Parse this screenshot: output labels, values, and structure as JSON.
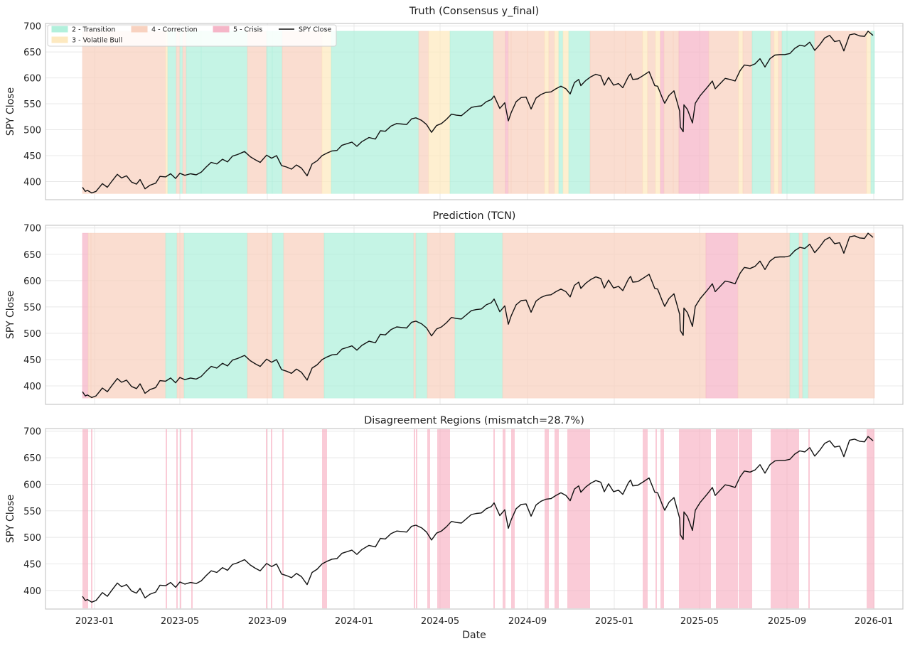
{
  "figure": {
    "xlabel": "Date"
  },
  "colors": {
    "regime_2": "#b2f0dc",
    "regime_3": "#fde9c0",
    "regime_4": "#f8d2c0",
    "regime_5": "#f5b6c8",
    "mismatch": "#f7a8bd",
    "line": "#111111",
    "grid": "#e8e8e8",
    "frame": "#c8c8c8"
  },
  "chart_data": [
    {
      "type": "line",
      "title": "Truth (Consensus y_final)",
      "ylabel": "SPY Close",
      "ylim": [
        365,
        705
      ],
      "xlim": [
        "2022-10-24",
        "2026-02-11"
      ],
      "yticks": [
        400,
        450,
        500,
        550,
        600,
        650,
        700
      ],
      "grid": true,
      "legend_position": "top-left",
      "legend": [
        {
          "label": "2 - Transition",
          "kind": "patch",
          "regime": 2
        },
        {
          "label": "3 - Volatile Bull",
          "kind": "patch",
          "regime": 3
        },
        {
          "label": "4 - Correction",
          "kind": "patch",
          "regime": 4
        },
        {
          "label": "5 - Crisis",
          "kind": "patch",
          "regime": 5
        },
        {
          "label": "SPY Close",
          "kind": "line"
        }
      ],
      "series": [
        {
          "name": "SPY Close",
          "values_ref": "spy_close"
        }
      ],
      "regimes": [
        [
          "2022-12-15",
          "2023-04-11",
          4
        ],
        [
          "2023-04-11",
          "2023-04-14",
          3
        ],
        [
          "2023-04-14",
          "2023-04-26",
          2
        ],
        [
          "2023-04-26",
          "2023-05-01",
          4
        ],
        [
          "2023-05-01",
          "2023-05-05",
          2
        ],
        [
          "2023-05-05",
          "2023-05-10",
          4
        ],
        [
          "2023-05-10",
          "2023-05-31",
          2
        ],
        [
          "2023-05-31",
          "2023-08-04",
          2
        ],
        [
          "2023-08-04",
          "2023-08-31",
          4
        ],
        [
          "2023-08-31",
          "2023-09-08",
          2
        ],
        [
          "2023-09-08",
          "2023-09-22",
          2
        ],
        [
          "2023-09-22",
          "2023-11-17",
          4
        ],
        [
          "2023-11-17",
          "2023-11-30",
          3
        ],
        [
          "2023-11-30",
          "2024-04-01",
          2
        ],
        [
          "2024-04-01",
          "2024-04-15",
          4
        ],
        [
          "2024-04-15",
          "2024-05-15",
          3
        ],
        [
          "2024-05-15",
          "2024-07-15",
          2
        ],
        [
          "2024-07-15",
          "2024-08-01",
          4
        ],
        [
          "2024-08-01",
          "2024-08-05",
          5
        ],
        [
          "2024-08-05",
          "2024-08-09",
          4
        ],
        [
          "2024-08-09",
          "2024-09-01",
          4
        ],
        [
          "2024-09-01",
          "2024-09-25",
          4
        ],
        [
          "2024-09-25",
          "2024-10-01",
          3
        ],
        [
          "2024-10-01",
          "2024-10-09",
          4
        ],
        [
          "2024-10-09",
          "2024-10-15",
          3
        ],
        [
          "2024-10-15",
          "2024-10-21",
          2
        ],
        [
          "2024-10-21",
          "2024-10-29",
          3
        ],
        [
          "2024-10-29",
          "2024-11-28",
          2
        ],
        [
          "2024-11-28",
          "2025-01-17",
          4
        ],
        [
          "2025-01-17",
          "2025-02-10",
          4
        ],
        [
          "2025-02-10",
          "2025-02-17",
          3
        ],
        [
          "2025-02-17",
          "2025-02-28",
          4
        ],
        [
          "2025-02-28",
          "2025-03-07",
          3
        ],
        [
          "2025-03-07",
          "2025-03-12",
          5
        ],
        [
          "2025-03-12",
          "2025-03-25",
          4
        ],
        [
          "2025-03-25",
          "2025-04-02",
          4
        ],
        [
          "2025-04-02",
          "2025-05-14",
          5
        ],
        [
          "2025-05-14",
          "2025-06-25",
          4
        ],
        [
          "2025-06-25",
          "2025-07-01",
          3
        ],
        [
          "2025-07-01",
          "2025-07-14",
          4
        ],
        [
          "2025-07-14",
          "2025-08-09",
          2
        ],
        [
          "2025-08-09",
          "2025-08-14",
          4
        ],
        [
          "2025-08-14",
          "2025-08-20",
          3
        ],
        [
          "2025-08-20",
          "2025-08-25",
          4
        ],
        [
          "2025-08-25",
          "2025-09-01",
          2
        ],
        [
          "2025-09-01",
          "2025-10-10",
          2
        ],
        [
          "2025-10-10",
          "2025-12-22",
          4
        ],
        [
          "2025-12-22",
          "2025-12-28",
          3
        ],
        [
          "2025-12-28",
          "2026-01-02",
          2
        ]
      ]
    },
    {
      "type": "line",
      "title": "Prediction (TCN)",
      "ylabel": "SPY Close",
      "ylim": [
        365,
        705
      ],
      "xlim": [
        "2022-10-24",
        "2026-02-11"
      ],
      "yticks": [
        400,
        450,
        500,
        550,
        600,
        650,
        700
      ],
      "grid": true,
      "series": [
        {
          "name": "SPY Close",
          "values_ref": "spy_close"
        }
      ],
      "regimes": [
        [
          "2022-12-15",
          "2022-12-23",
          5
        ],
        [
          "2022-12-23",
          "2022-12-27",
          4
        ],
        [
          "2022-12-27",
          "2023-04-11",
          4
        ],
        [
          "2023-04-11",
          "2023-04-27",
          2
        ],
        [
          "2023-04-27",
          "2023-05-07",
          4
        ],
        [
          "2023-05-07",
          "2023-08-04",
          2
        ],
        [
          "2023-08-04",
          "2023-09-01",
          4
        ],
        [
          "2023-09-01",
          "2023-09-08",
          4
        ],
        [
          "2023-09-08",
          "2023-09-24",
          2
        ],
        [
          "2023-09-24",
          "2023-11-20",
          4
        ],
        [
          "2023-11-20",
          "2024-03-25",
          2
        ],
        [
          "2024-03-25",
          "2024-03-28",
          4
        ],
        [
          "2024-03-28",
          "2024-04-13",
          2
        ],
        [
          "2024-04-13",
          "2024-05-22",
          4
        ],
        [
          "2024-05-22",
          "2024-07-28",
          2
        ],
        [
          "2024-07-28",
          "2025-05-10",
          4
        ],
        [
          "2025-05-10",
          "2025-06-24",
          5
        ],
        [
          "2025-06-24",
          "2025-09-05",
          4
        ],
        [
          "2025-09-05",
          "2025-09-18",
          2
        ],
        [
          "2025-09-18",
          "2025-09-23",
          4
        ],
        [
          "2025-09-23",
          "2025-10-01",
          2
        ],
        [
          "2025-10-01",
          "2026-01-02",
          4
        ]
      ]
    },
    {
      "type": "line",
      "title": "Disagreement Regions (mismatch=28.7%)",
      "ylabel": "SPY Close",
      "xlabel": "Date",
      "ylim": [
        365,
        705
      ],
      "xlim": [
        "2022-10-24",
        "2026-02-11"
      ],
      "xticks": [
        "2023-01",
        "2023-05",
        "2023-09",
        "2024-01",
        "2024-05",
        "2024-09",
        "2025-01",
        "2025-05",
        "2025-09",
        "2026-01"
      ],
      "yticks": [
        400,
        450,
        500,
        550,
        600,
        650,
        700
      ],
      "grid": true,
      "series": [
        {
          "name": "SPY Close",
          "values_ref": "spy_close"
        }
      ],
      "mismatch_spans": [
        [
          "2022-12-15",
          "2022-12-23"
        ],
        [
          "2022-12-27",
          "2022-12-29"
        ],
        [
          "2023-04-11",
          "2023-04-13"
        ],
        [
          "2023-04-26",
          "2023-04-28"
        ],
        [
          "2023-05-01",
          "2023-05-03"
        ],
        [
          "2023-05-17",
          "2023-05-19"
        ],
        [
          "2023-08-30",
          "2023-09-01"
        ],
        [
          "2023-09-06",
          "2023-09-08"
        ],
        [
          "2023-09-22",
          "2023-09-24"
        ],
        [
          "2023-11-17",
          "2023-11-24"
        ],
        [
          "2024-03-25",
          "2024-03-27"
        ],
        [
          "2024-03-28",
          "2024-03-30"
        ],
        [
          "2024-04-13",
          "2024-04-17"
        ],
        [
          "2024-04-27",
          "2024-05-15"
        ],
        [
          "2024-07-15",
          "2024-07-17"
        ],
        [
          "2024-07-28",
          "2024-08-01"
        ],
        [
          "2024-08-09",
          "2024-08-14"
        ],
        [
          "2024-09-25",
          "2024-10-01"
        ],
        [
          "2024-10-09",
          "2024-10-15"
        ],
        [
          "2024-10-27",
          "2024-11-28"
        ],
        [
          "2025-02-10",
          "2025-02-17"
        ],
        [
          "2025-02-28",
          "2025-03-02"
        ],
        [
          "2025-03-07",
          "2025-03-12"
        ],
        [
          "2025-04-02",
          "2025-05-14"
        ],
        [
          "2025-05-14",
          "2025-05-17"
        ],
        [
          "2025-05-24",
          "2025-06-24"
        ],
        [
          "2025-06-25",
          "2025-07-14"
        ],
        [
          "2025-08-09",
          "2025-08-14"
        ],
        [
          "2025-08-14",
          "2025-08-25"
        ],
        [
          "2025-08-25",
          "2025-09-05"
        ],
        [
          "2025-09-05",
          "2025-09-18"
        ],
        [
          "2025-10-01",
          "2025-10-03"
        ],
        [
          "2025-12-22",
          "2026-01-02"
        ]
      ]
    }
  ],
  "spy_close": [
    [
      "2022-12-15",
      389
    ],
    [
      "2022-12-19",
      381
    ],
    [
      "2022-12-22",
      383
    ],
    [
      "2022-12-28",
      378
    ],
    [
      "2023-01-03",
      381
    ],
    [
      "2023-01-06",
      386
    ],
    [
      "2023-01-12",
      396
    ],
    [
      "2023-01-19",
      389
    ],
    [
      "2023-01-25",
      400
    ],
    [
      "2023-02-02",
      414
    ],
    [
      "2023-02-08",
      407
    ],
    [
      "2023-02-15",
      411
    ],
    [
      "2023-02-22",
      399
    ],
    [
      "2023-03-01",
      395
    ],
    [
      "2023-03-06",
      404
    ],
    [
      "2023-03-13",
      386
    ],
    [
      "2023-03-20",
      393
    ],
    [
      "2023-03-28",
      397
    ],
    [
      "2023-04-03",
      410
    ],
    [
      "2023-04-11",
      409
    ],
    [
      "2023-04-18",
      415
    ],
    [
      "2023-04-25",
      406
    ],
    [
      "2023-05-01",
      416
    ],
    [
      "2023-05-08",
      412
    ],
    [
      "2023-05-16",
      415
    ],
    [
      "2023-05-24",
      413
    ],
    [
      "2023-05-31",
      418
    ],
    [
      "2023-06-07",
      428
    ],
    [
      "2023-06-14",
      437
    ],
    [
      "2023-06-22",
      434
    ],
    [
      "2023-06-30",
      443
    ],
    [
      "2023-07-07",
      438
    ],
    [
      "2023-07-14",
      449
    ],
    [
      "2023-07-21",
      452
    ],
    [
      "2023-07-31",
      458
    ],
    [
      "2023-08-08",
      448
    ],
    [
      "2023-08-15",
      442
    ],
    [
      "2023-08-22",
      437
    ],
    [
      "2023-08-31",
      451
    ],
    [
      "2023-09-07",
      445
    ],
    [
      "2023-09-14",
      450
    ],
    [
      "2023-09-21",
      431
    ],
    [
      "2023-09-28",
      428
    ],
    [
      "2023-10-05",
      424
    ],
    [
      "2023-10-12",
      432
    ],
    [
      "2023-10-19",
      426
    ],
    [
      "2023-10-27",
      411
    ],
    [
      "2023-11-03",
      434
    ],
    [
      "2023-11-10",
      440
    ],
    [
      "2023-11-17",
      450
    ],
    [
      "2023-11-24",
      455
    ],
    [
      "2023-12-01",
      459
    ],
    [
      "2023-12-08",
      460
    ],
    [
      "2023-12-15",
      470
    ],
    [
      "2023-12-22",
      473
    ],
    [
      "2023-12-29",
      476
    ],
    [
      "2024-01-05",
      468
    ],
    [
      "2024-01-12",
      477
    ],
    [
      "2024-01-22",
      485
    ],
    [
      "2024-01-31",
      482
    ],
    [
      "2024-02-07",
      498
    ],
    [
      "2024-02-14",
      497
    ],
    [
      "2024-02-22",
      507
    ],
    [
      "2024-03-01",
      512
    ],
    [
      "2024-03-08",
      511
    ],
    [
      "2024-03-15",
      510
    ],
    [
      "2024-03-22",
      521
    ],
    [
      "2024-03-28",
      523
    ],
    [
      "2024-04-05",
      518
    ],
    [
      "2024-04-12",
      510
    ],
    [
      "2024-04-19",
      495
    ],
    [
      "2024-04-26",
      508
    ],
    [
      "2024-05-03",
      512
    ],
    [
      "2024-05-10",
      520
    ],
    [
      "2024-05-17",
      530
    ],
    [
      "2024-05-24",
      528
    ],
    [
      "2024-05-31",
      527
    ],
    [
      "2024-06-07",
      535
    ],
    [
      "2024-06-14",
      543
    ],
    [
      "2024-06-21",
      545
    ],
    [
      "2024-06-28",
      546
    ],
    [
      "2024-07-05",
      554
    ],
    [
      "2024-07-12",
      558
    ],
    [
      "2024-07-16",
      565
    ],
    [
      "2024-07-24",
      541
    ],
    [
      "2024-07-31",
      552
    ],
    [
      "2024-08-05",
      517
    ],
    [
      "2024-08-09",
      533
    ],
    [
      "2024-08-16",
      554
    ],
    [
      "2024-08-23",
      562
    ],
    [
      "2024-08-30",
      563
    ],
    [
      "2024-09-06",
      540
    ],
    [
      "2024-09-13",
      561
    ],
    [
      "2024-09-20",
      568
    ],
    [
      "2024-09-27",
      572
    ],
    [
      "2024-10-04",
      573
    ],
    [
      "2024-10-11",
      579
    ],
    [
      "2024-10-18",
      584
    ],
    [
      "2024-10-25",
      579
    ],
    [
      "2024-10-31",
      569
    ],
    [
      "2024-11-06",
      591
    ],
    [
      "2024-11-12",
      597
    ],
    [
      "2024-11-15",
      585
    ],
    [
      "2024-11-22",
      595
    ],
    [
      "2024-11-29",
      602
    ],
    [
      "2024-12-06",
      607
    ],
    [
      "2024-12-13",
      604
    ],
    [
      "2024-12-18",
      586
    ],
    [
      "2024-12-24",
      601
    ],
    [
      "2024-12-31",
      586
    ],
    [
      "2025-01-07",
      589
    ],
    [
      "2025-01-13",
      581
    ],
    [
      "2025-01-21",
      603
    ],
    [
      "2025-01-24",
      608
    ],
    [
      "2025-01-27",
      597
    ],
    [
      "2025-02-03",
      598
    ],
    [
      "2025-02-10",
      604
    ],
    [
      "2025-02-19",
      612
    ],
    [
      "2025-02-27",
      585
    ],
    [
      "2025-03-03",
      584
    ],
    [
      "2025-03-10",
      560
    ],
    [
      "2025-03-13",
      551
    ],
    [
      "2025-03-19",
      566
    ],
    [
      "2025-03-26",
      575
    ],
    [
      "2025-04-03",
      536
    ],
    [
      "2025-04-04",
      505
    ],
    [
      "2025-04-08",
      496
    ],
    [
      "2025-04-09",
      548
    ],
    [
      "2025-04-14",
      539
    ],
    [
      "2025-04-21",
      513
    ],
    [
      "2025-04-25",
      551
    ],
    [
      "2025-05-02",
      566
    ],
    [
      "2025-05-12",
      582
    ],
    [
      "2025-05-19",
      594
    ],
    [
      "2025-05-23",
      579
    ],
    [
      "2025-05-30",
      589
    ],
    [
      "2025-06-06",
      599
    ],
    [
      "2025-06-13",
      597
    ],
    [
      "2025-06-20",
      594
    ],
    [
      "2025-06-27",
      614
    ],
    [
      "2025-07-03",
      625
    ],
    [
      "2025-07-11",
      623
    ],
    [
      "2025-07-18",
      627
    ],
    [
      "2025-07-25",
      637
    ],
    [
      "2025-08-01",
      621
    ],
    [
      "2025-08-08",
      637
    ],
    [
      "2025-08-15",
      644
    ],
    [
      "2025-08-22",
      645
    ],
    [
      "2025-08-29",
      645
    ],
    [
      "2025-09-05",
      647
    ],
    [
      "2025-09-12",
      657
    ],
    [
      "2025-09-19",
      663
    ],
    [
      "2025-09-26",
      661
    ],
    [
      "2025-10-03",
      669
    ],
    [
      "2025-10-10",
      653
    ],
    [
      "2025-10-17",
      664
    ],
    [
      "2025-10-24",
      677
    ],
    [
      "2025-10-31",
      682
    ],
    [
      "2025-11-07",
      670
    ],
    [
      "2025-11-14",
      672
    ],
    [
      "2025-11-20",
      652
    ],
    [
      "2025-11-28",
      683
    ],
    [
      "2025-12-05",
      685
    ],
    [
      "2025-12-12",
      681
    ],
    [
      "2025-12-19",
      680
    ],
    [
      "2025-12-24",
      690
    ],
    [
      "2025-12-31",
      682
    ]
  ]
}
